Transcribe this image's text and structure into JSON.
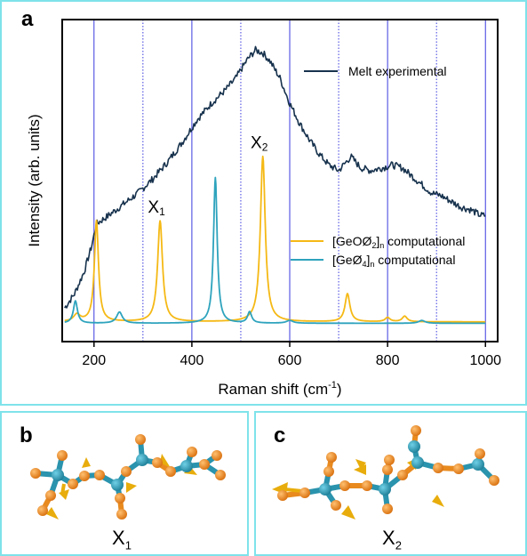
{
  "panel_a": {
    "label": "a"
  },
  "panel_b": {
    "label": "b",
    "caption_main": "X",
    "caption_sub": "1"
  },
  "panel_c": {
    "label": "c",
    "caption_main": "X",
    "caption_sub": "2"
  },
  "colors": {
    "experimental": "#17324d",
    "geo_o2": "#f5b915",
    "geo4": "#2ea3bd",
    "vline": "#3a3adf",
    "frame": "#7fe3ea",
    "atom_orange": "#e88a1e",
    "atom_teal": "#2a93ad",
    "arrow_gold": "#e8ad0c"
  },
  "chart_data": {
    "type": "line",
    "xlabel": "Raman shift (cm",
    "xlabel_sup": "-1",
    "xlabel_end": ")",
    "ylabel": "Intensity (arb. units)",
    "xlim": [
      135,
      1025
    ],
    "ylim": [
      0,
      1
    ],
    "xticks": [
      200,
      400,
      600,
      800,
      1000
    ],
    "vlines_solid": [
      200,
      400,
      600,
      800,
      1000
    ],
    "vlines_dotted": [
      300,
      500,
      700,
      900
    ],
    "legend": {
      "experimental": "Melt experimental",
      "geo_o2_main": "[GeOØ",
      "geo_o2_sub2": "2",
      "geo_o2_close": "]",
      "geo_o2_subn": "n",
      "geo_o2_tail": " computational",
      "geo4_main": "[GeØ",
      "geo4_sub4": "4",
      "geo4_close": "]",
      "geo4_subn": "n",
      "geo4_tail": " computational"
    },
    "annotations": {
      "x1_main": "X",
      "x1_sub": "1",
      "x1_at": 335,
      "x2_main": "X",
      "x2_sub": "2",
      "x2_at": 545
    },
    "series": [
      {
        "key": "experimental",
        "name": "Melt experimental",
        "points": [
          [
            140,
            0.06
          ],
          [
            160,
            0.11
          ],
          [
            180,
            0.19
          ],
          [
            195,
            0.28
          ],
          [
            205,
            0.36
          ],
          [
            230,
            0.39
          ],
          [
            260,
            0.43
          ],
          [
            290,
            0.47
          ],
          [
            320,
            0.52
          ],
          [
            350,
            0.58
          ],
          [
            380,
            0.65
          ],
          [
            410,
            0.73
          ],
          [
            440,
            0.79
          ],
          [
            470,
            0.84
          ],
          [
            490,
            0.88
          ],
          [
            500,
            0.91
          ],
          [
            515,
            0.95
          ],
          [
            530,
            0.98
          ],
          [
            545,
            0.97
          ],
          [
            560,
            0.94
          ],
          [
            580,
            0.88
          ],
          [
            600,
            0.79
          ],
          [
            620,
            0.72
          ],
          [
            640,
            0.66
          ],
          [
            660,
            0.61
          ],
          [
            680,
            0.57
          ],
          [
            700,
            0.55
          ],
          [
            710,
            0.57
          ],
          [
            725,
            0.6
          ],
          [
            745,
            0.56
          ],
          [
            765,
            0.55
          ],
          [
            790,
            0.56
          ],
          [
            810,
            0.57
          ],
          [
            830,
            0.56
          ],
          [
            850,
            0.53
          ],
          [
            870,
            0.5
          ],
          [
            890,
            0.47
          ],
          [
            910,
            0.46
          ],
          [
            930,
            0.44
          ],
          [
            950,
            0.42
          ],
          [
            970,
            0.41
          ],
          [
            990,
            0.39
          ],
          [
            1000,
            0.39
          ]
        ]
      },
      {
        "key": "geo_o2",
        "name": "[GeOØ2]n computational",
        "baseline": 0.01,
        "peaks": [
          [
            165,
            0.025,
            8
          ],
          [
            205,
            0.36,
            5
          ],
          [
            335,
            0.36,
            6
          ],
          [
            545,
            0.59,
            6
          ],
          [
            718,
            0.1,
            6
          ],
          [
            800,
            0.015,
            6
          ],
          [
            835,
            0.02,
            6
          ]
        ]
      },
      {
        "key": "geo4",
        "name": "[GeØ4]n computational",
        "baseline": 0.005,
        "peaks": [
          [
            162,
            0.08,
            5
          ],
          [
            252,
            0.04,
            7
          ],
          [
            448,
            0.52,
            4.5
          ],
          [
            518,
            0.04,
            5
          ],
          [
            600,
            0.01,
            8
          ],
          [
            870,
            0.01,
            8
          ]
        ]
      }
    ]
  }
}
